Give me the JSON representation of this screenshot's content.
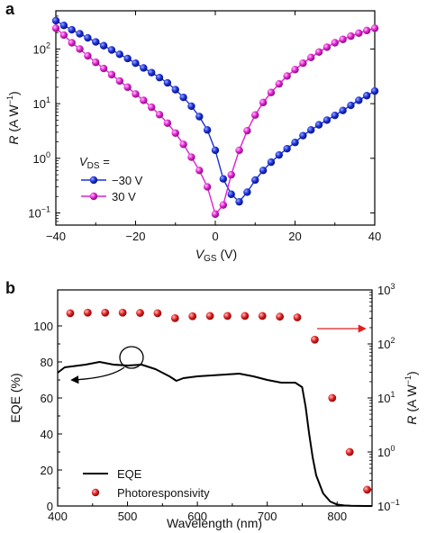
{
  "chart_data": [
    {
      "panel_label": "a",
      "type": "line",
      "xlabel_main": "V",
      "xlabel_sub": "GS",
      "xlabel_unit": " (V)",
      "ylabel_main": "R",
      "ylabel_unit": " (A W",
      "ylabel_sup": "−1",
      "ylabel_close": ")",
      "xlim": [
        -40,
        40
      ],
      "ylim": [
        0.06,
        500
      ],
      "yscale": "log",
      "xticks": [
        -40,
        -20,
        0,
        20,
        40
      ],
      "xtick_labels": [
        "−40",
        "−20",
        "0",
        "20",
        "40"
      ],
      "yticks": [
        0.1,
        1,
        10,
        100
      ],
      "ytick_labels": [
        {
          "base": "10",
          "exp": "−1"
        },
        {
          "base": "10",
          "exp": "0"
        },
        {
          "base": "10",
          "exp": "1"
        },
        {
          "base": "10",
          "exp": "2"
        }
      ],
      "legend_title_main": "V",
      "legend_title_sub": "DS",
      "legend_title_suffix": " =",
      "legend_position": "lower-left",
      "series": [
        {
          "name": "−30 V",
          "color": "#1a2fd6",
          "x": [
            -40,
            -38,
            -36,
            -34,
            -32,
            -30,
            -28,
            -26,
            -24,
            -22,
            -20,
            -18,
            -16,
            -14,
            -12,
            -10,
            -8,
            -6,
            -4,
            -2,
            0,
            2,
            4,
            6,
            8,
            10,
            12,
            14,
            16,
            18,
            20,
            22,
            24,
            26,
            28,
            30,
            32,
            34,
            36,
            38,
            40
          ],
          "y": [
            330,
            270,
            225,
            190,
            160,
            135,
            115,
            96,
            80,
            67,
            55,
            45,
            37,
            30,
            24,
            18,
            13,
            9,
            5.8,
            3.3,
            1.4,
            0.42,
            0.22,
            0.16,
            0.24,
            0.4,
            0.6,
            0.85,
            1.15,
            1.5,
            1.95,
            2.6,
            3.3,
            4.1,
            5,
            6.1,
            7.5,
            9.3,
            11.5,
            14,
            17
          ]
        },
        {
          "name": "30 V",
          "color": "#e020d0",
          "x": [
            -40,
            -38,
            -36,
            -34,
            -32,
            -30,
            -28,
            -26,
            -24,
            -22,
            -20,
            -18,
            -16,
            -14,
            -12,
            -10,
            -8,
            -6,
            -4,
            -2,
            0,
            2,
            4,
            6,
            8,
            10,
            12,
            14,
            16,
            18,
            20,
            22,
            24,
            26,
            28,
            30,
            32,
            34,
            36,
            38,
            40
          ],
          "y": [
            240,
            180,
            130,
            100,
            75,
            57,
            44,
            34,
            26,
            20,
            15,
            11.5,
            8.6,
            6.3,
            4.4,
            2.9,
            1.8,
            1.05,
            0.6,
            0.3,
            0.095,
            0.14,
            0.5,
            1.4,
            3.2,
            6.2,
            10.5,
            16,
            23,
            32,
            42,
            55,
            70,
            88,
            108,
            130,
            150,
            172,
            195,
            218,
            240
          ]
        }
      ]
    },
    {
      "panel_label": "b",
      "type": "line",
      "xlabel": "Wavelength (nm)",
      "ylabel_left": "EQE (%)",
      "ylabel_right_main": "R",
      "ylabel_right_unit": " (A W",
      "ylabel_right_sup": "−1",
      "ylabel_right_close": ")",
      "xlim": [
        400,
        850
      ],
      "ylim_left": [
        0,
        120
      ],
      "ylim_right": [
        0.1,
        1000
      ],
      "yscale_right": "log",
      "xticks": [
        400,
        500,
        600,
        700,
        800
      ],
      "xtick_labels": [
        "400",
        "500",
        "600",
        "700",
        "800"
      ],
      "yticks_left": [
        0,
        20,
        40,
        60,
        80,
        100
      ],
      "ytick_labels_left": [
        "0",
        "20",
        "40",
        "60",
        "80",
        "100"
      ],
      "yticks_right": [
        0.1,
        1,
        10,
        100,
        1000
      ],
      "ytick_labels_right": [
        {
          "base": "10",
          "exp": "−1"
        },
        {
          "base": "10",
          "exp": "0"
        },
        {
          "base": "10",
          "exp": "1"
        },
        {
          "base": "10",
          "exp": "2"
        },
        {
          "base": "10",
          "exp": "3"
        }
      ],
      "legend_position": "lower-left",
      "series": [
        {
          "name": "EQE",
          "axis": "left",
          "color": "#000000",
          "x": [
            400,
            410,
            420,
            440,
            460,
            480,
            500,
            520,
            540,
            560,
            570,
            580,
            600,
            620,
            640,
            660,
            680,
            700,
            720,
            740,
            750,
            755,
            760,
            765,
            770,
            780,
            790,
            800,
            810,
            820,
            830,
            840,
            850
          ],
          "y": [
            74,
            77,
            77.5,
            78.5,
            80,
            78.5,
            78,
            78.5,
            76,
            72,
            69.5,
            71,
            72,
            72.5,
            73,
            73.5,
            72,
            70,
            68.5,
            68.5,
            66,
            55,
            40,
            27,
            17,
            7,
            2.5,
            0.8,
            0.3,
            0.1,
            0.05,
            0,
            0
          ]
        },
        {
          "name": "Photoresponsivity",
          "axis": "right",
          "color": "#e02020",
          "x": [
            418,
            443,
            468,
            493,
            518,
            543,
            568,
            593,
            618,
            643,
            668,
            693,
            718,
            743,
            768,
            793,
            818,
            843
          ],
          "y": [
            370,
            380,
            380,
            380,
            375,
            370,
            300,
            325,
            330,
            330,
            330,
            330,
            320,
            310,
            120,
            10,
            1.0,
            0.2
          ]
        }
      ]
    }
  ]
}
